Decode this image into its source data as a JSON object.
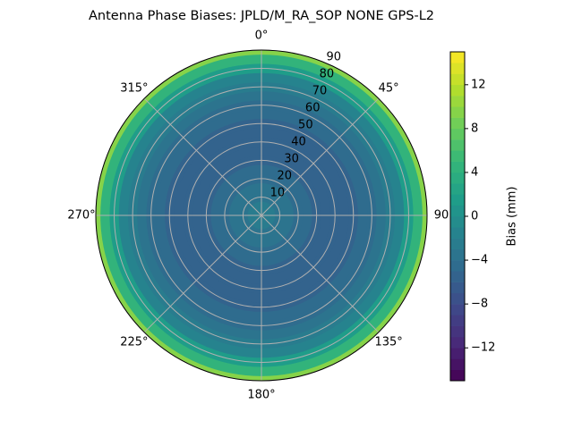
{
  "chart_data": {
    "type": "polar-contour",
    "title": "Antenna Phase Biases: JPLD/M_RA_SOP   NONE GPS-L2",
    "zenith": [
      0,
      5,
      10,
      15,
      20,
      25,
      30,
      35,
      40,
      45,
      50,
      55,
      60,
      65,
      70,
      75,
      80,
      85,
      90
    ],
    "values": [
      -2.5,
      -3,
      -3.5,
      -4,
      -4.5,
      -5,
      -5.5,
      -5.5,
      -5.5,
      -5.5,
      -5.5,
      -5,
      -4.5,
      -4,
      -3,
      -1.5,
      1,
      4,
      9
    ],
    "rlim": [
      0,
      90
    ],
    "rticks": [
      10,
      20,
      30,
      40,
      50,
      60,
      70,
      80,
      90
    ],
    "theta_ticks": [
      {
        "value": 0,
        "label": "0°"
      },
      {
        "value": 45,
        "label": "45°"
      },
      {
        "value": 90,
        "label": "90"
      },
      {
        "value": 135,
        "label": "135°"
      },
      {
        "value": 180,
        "label": "180°"
      },
      {
        "value": 225,
        "label": "225°"
      },
      {
        "value": 270,
        "label": "270°"
      },
      {
        "value": 315,
        "label": "315°"
      }
    ],
    "theta_direction": "clockwise",
    "theta_zero": "north",
    "colormap": "viridis",
    "zlim": [
      -15,
      15
    ],
    "n_levels": 30,
    "zticks": [
      {
        "value": -12,
        "label": "−12"
      },
      {
        "value": -8,
        "label": "−8"
      },
      {
        "value": -4,
        "label": "−4"
      },
      0,
      4,
      8,
      12
    ],
    "colorbar_label": "Bias (mm)",
    "grid": true
  }
}
